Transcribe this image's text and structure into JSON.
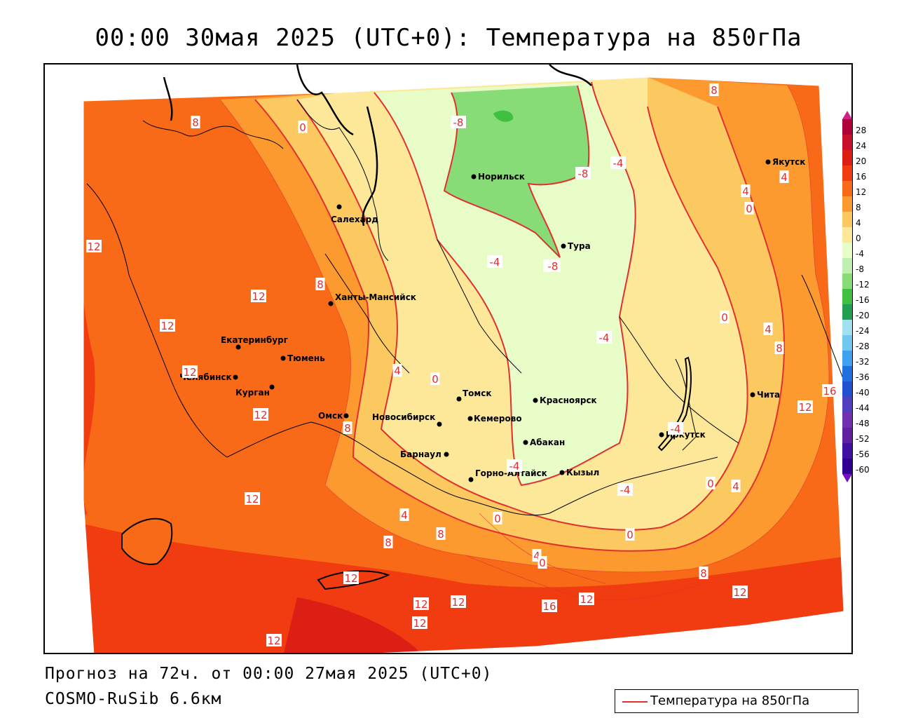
{
  "title": "00:00 30мая 2025 (UTC+0): Температура на 850гПа",
  "footer": {
    "forecast": "Прогноз на 72ч. от 00:00 27мая 2025 (UTC+0)",
    "model": "COSMO-RuSib 6.6км"
  },
  "legend": {
    "line_label": "Температура на 850гПа",
    "line_color": "#e03030"
  },
  "colorbar": {
    "labels": [
      "28",
      "24",
      "20",
      "16",
      "12",
      "8",
      "4",
      "0",
      "-4",
      "-8",
      "-12",
      "-16",
      "-20",
      "-24",
      "-28",
      "-32",
      "-36",
      "-40",
      "-44",
      "-48",
      "-52",
      "-56",
      "-60"
    ],
    "colors": [
      "#b0003a",
      "#c8102a",
      "#dc1e14",
      "#f03c10",
      "#f86a18",
      "#fc9a30",
      "#fcc860",
      "#fce898",
      "#e8fcc8",
      "#c0f0b0",
      "#88dc78",
      "#40c040",
      "#20a050",
      "#a0e0f0",
      "#70c8f0",
      "#40a0f0",
      "#2070e0",
      "#2050d0",
      "#5040c0",
      "#7030b0",
      "#6020a0",
      "#4010a0",
      "#300090"
    ]
  },
  "cities": [
    {
      "name": "Норильск"
    },
    {
      "name": "Якутск"
    },
    {
      "name": "Салехард"
    },
    {
      "name": "Тура"
    },
    {
      "name": "Ханты-Мансийск"
    },
    {
      "name": "Екатеринбург"
    },
    {
      "name": "Тюмень"
    },
    {
      "name": "Челябинск"
    },
    {
      "name": "Курган"
    },
    {
      "name": "Омск"
    },
    {
      "name": "Новосибирск"
    },
    {
      "name": "Томск"
    },
    {
      "name": "Красноярск"
    },
    {
      "name": "Кемерово"
    },
    {
      "name": "Абакан"
    },
    {
      "name": "Барнаул"
    },
    {
      "name": "Горно-Алтайск"
    },
    {
      "name": "Кызыл"
    },
    {
      "name": "Иркутск"
    },
    {
      "name": "Чита"
    }
  ],
  "isotherm_labels": [
    "8",
    "0",
    "-8",
    "-8",
    "-4",
    "8",
    "4",
    "4",
    "0",
    "12",
    "12",
    "8",
    "-4",
    "-8",
    "12",
    "12",
    "-4",
    "0",
    "4",
    "8",
    "12",
    "4",
    "0",
    "8",
    "12",
    "16",
    "-4",
    "0",
    "-4",
    "0",
    "4",
    "8",
    "12",
    "12",
    "12",
    "12",
    "16",
    "12",
    "12",
    "-4",
    "-8",
    "4",
    "0",
    "0",
    "4",
    "8",
    "12",
    "8",
    "12"
  ]
}
